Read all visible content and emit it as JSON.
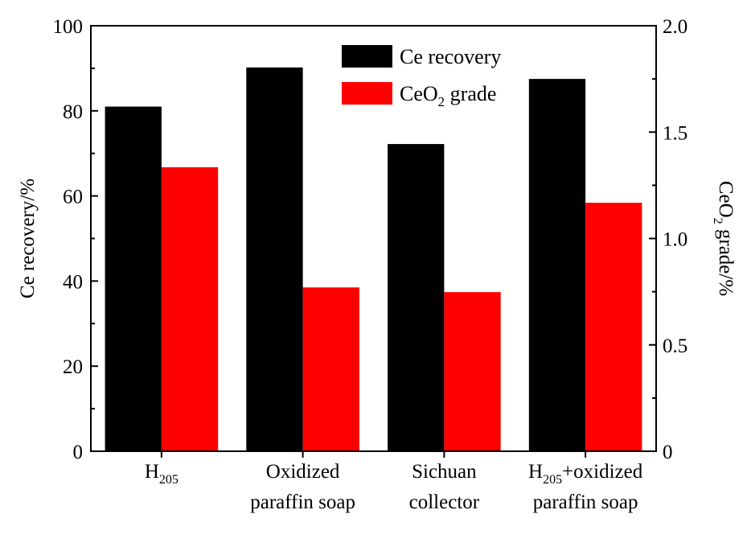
{
  "chart_data": {
    "type": "bar",
    "categories": [
      {
        "id": "h205",
        "lines": [
          {
            "base": "H",
            "sub": "205",
            "rest": ""
          }
        ]
      },
      {
        "id": "oxidized-paraffin-soap",
        "lines": [
          {
            "base": "Oxidized",
            "sub": "",
            "rest": ""
          },
          {
            "base": "paraffin soap",
            "sub": "",
            "rest": ""
          }
        ]
      },
      {
        "id": "sichuan-collector",
        "lines": [
          {
            "base": "Sichuan",
            "sub": "",
            "rest": ""
          },
          {
            "base": "collector",
            "sub": "",
            "rest": ""
          }
        ]
      },
      {
        "id": "h205-oxidized-paraffin-soap",
        "lines": [
          {
            "base": "H",
            "sub": "205",
            "rest": "+oxidized"
          },
          {
            "base": "paraffin soap",
            "sub": "",
            "rest": ""
          }
        ]
      }
    ],
    "series": [
      {
        "name": "Ce recovery",
        "axis": "left",
        "color": "#000000",
        "values": [
          81,
          90.2,
          72.2,
          87.5
        ]
      },
      {
        "name": "CeO2 grade",
        "legend": {
          "base": "CeO",
          "sub": "2",
          "rest": " grade"
        },
        "axis": "right",
        "color": "#ff0000",
        "values": [
          1.335,
          0.77,
          0.748,
          1.168
        ]
      }
    ],
    "left_axis": {
      "label": "Ce recovery/%",
      "min": 0,
      "max": 100,
      "ticks": [
        0,
        20,
        40,
        60,
        80,
        100
      ]
    },
    "right_axis": {
      "label": {
        "base": "CeO",
        "sub": "2",
        "rest": " grade/%"
      },
      "min": 0,
      "max": 2.0,
      "ticks": [
        "0",
        "0.5",
        "1.0",
        "1.5",
        "2.0"
      ],
      "tick_values": [
        0,
        0.5,
        1.0,
        1.5,
        2.0
      ]
    },
    "legend_position": "top-center",
    "grid": false
  }
}
